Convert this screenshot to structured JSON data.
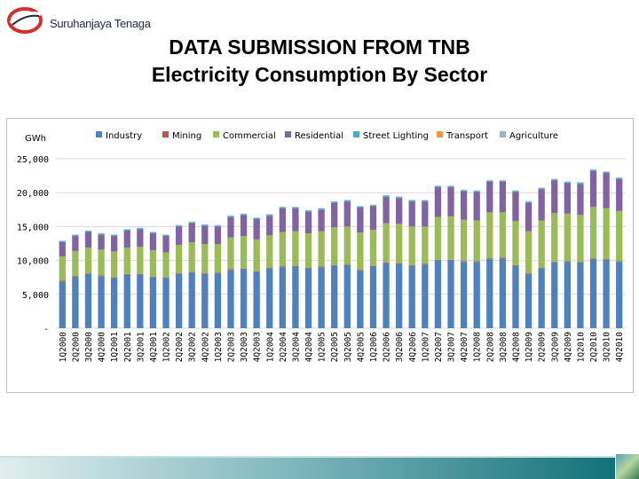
{
  "header": {
    "logo_text": "Suruhanjaya Tenaga",
    "title_line1": "DATA SUBMISSION FROM TNB",
    "title_line2": "Electricity Consumption By Sector"
  },
  "colors": {
    "Industry": "#4f81bd",
    "Mining": "#c0504d",
    "Commercial": "#9bbb59",
    "Residential": "#8064a2",
    "Street Lighting": "#4bacc6",
    "Transport": "#f79646",
    "Agriculture": "#95b3d7"
  },
  "chart_data": {
    "type": "bar",
    "stacked": true,
    "unit_label": "GWh",
    "ylim": [
      0,
      25000
    ],
    "yticks": [
      "-",
      "5,000",
      "10,000",
      "15,000",
      "20,000",
      "25,000"
    ],
    "legend_position": "top",
    "categories": [
      "1Q2000",
      "2Q2000",
      "3Q2000",
      "4Q2000",
      "1Q2001",
      "2Q2001",
      "3Q2001",
      "4Q2001",
      "1Q2002",
      "2Q2002",
      "3Q2002",
      "4Q2002",
      "1Q2003",
      "2Q2003",
      "3Q2003",
      "4Q2003",
      "1Q2004",
      "2Q2004",
      "3Q2004",
      "4Q2004",
      "1Q2005",
      "2Q2005",
      "3Q2005",
      "4Q2005",
      "1Q2006",
      "2Q2006",
      "3Q2006",
      "4Q2006",
      "1Q2007",
      "2Q2007",
      "3Q2007",
      "4Q2007",
      "1Q2008",
      "2Q2008",
      "3Q2008",
      "4Q2008",
      "1Q2009",
      "2Q2009",
      "3Q2009",
      "4Q2009",
      "1Q2010",
      "2Q2010",
      "3Q2010",
      "4Q2010"
    ],
    "series": [
      {
        "name": "Industry",
        "values": [
          6900,
          7600,
          8000,
          7700,
          7400,
          7900,
          7900,
          7500,
          7400,
          8000,
          8200,
          8000,
          8100,
          8600,
          8700,
          8300,
          8800,
          9000,
          9100,
          8800,
          9000,
          9200,
          9300,
          8500,
          9100,
          9600,
          9500,
          9200,
          9400,
          10000,
          10000,
          9800,
          9800,
          10200,
          10300,
          9200,
          8000,
          8800,
          9700,
          9800,
          9700,
          10200,
          10100,
          9800
        ]
      },
      {
        "name": "Mining",
        "values": [
          100,
          100,
          100,
          100,
          100,
          100,
          100,
          100,
          100,
          100,
          100,
          100,
          100,
          100,
          100,
          100,
          100,
          100,
          100,
          100,
          100,
          100,
          100,
          100,
          100,
          100,
          100,
          100,
          100,
          100,
          100,
          100,
          100,
          100,
          100,
          100,
          100,
          100,
          100,
          100,
          100,
          100,
          100,
          100
        ]
      },
      {
        "name": "Commercial",
        "values": [
          3600,
          3700,
          3800,
          3800,
          3800,
          3900,
          4000,
          3900,
          3700,
          4200,
          4400,
          4300,
          4200,
          4700,
          4800,
          4700,
          4800,
          5100,
          5100,
          5100,
          5200,
          5600,
          5600,
          5500,
          5300,
          5800,
          5800,
          5700,
          5500,
          6300,
          6400,
          6100,
          6000,
          6800,
          6700,
          6500,
          6200,
          7000,
          7200,
          7000,
          6900,
          7600,
          7500,
          7400
        ]
      },
      {
        "name": "Residential",
        "values": [
          2100,
          2200,
          2300,
          2200,
          2300,
          2500,
          2600,
          2500,
          2400,
          2700,
          2800,
          2700,
          2600,
          3000,
          3100,
          3000,
          2900,
          3500,
          3400,
          3200,
          3200,
          3600,
          3700,
          3700,
          3500,
          3900,
          3800,
          3700,
          3700,
          4400,
          4300,
          4200,
          4200,
          4500,
          4500,
          4300,
          4200,
          4600,
          4800,
          4500,
          4600,
          5300,
          5200,
          4700
        ]
      },
      {
        "name": "Street Lighting",
        "values": [
          150,
          150,
          150,
          150,
          150,
          150,
          150,
          150,
          150,
          150,
          150,
          150,
          150,
          150,
          150,
          150,
          150,
          150,
          150,
          150,
          160,
          160,
          160,
          160,
          160,
          160,
          160,
          160,
          160,
          160,
          160,
          160,
          160,
          170,
          170,
          170,
          170,
          170,
          170,
          170,
          170,
          170,
          170,
          170
        ]
      },
      {
        "name": "Transport",
        "values": [
          10,
          10,
          10,
          10,
          10,
          10,
          10,
          10,
          10,
          10,
          10,
          10,
          10,
          10,
          10,
          10,
          10,
          10,
          10,
          10,
          10,
          10,
          10,
          10,
          10,
          10,
          10,
          10,
          10,
          10,
          10,
          10,
          10,
          10,
          10,
          10,
          10,
          10,
          10,
          10,
          10,
          10,
          10,
          10
        ]
      },
      {
        "name": "Agriculture",
        "values": [
          60,
          60,
          60,
          60,
          60,
          60,
          60,
          60,
          60,
          60,
          60,
          60,
          60,
          60,
          60,
          60,
          60,
          60,
          60,
          60,
          60,
          60,
          60,
          60,
          60,
          60,
          60,
          60,
          60,
          60,
          60,
          60,
          60,
          60,
          60,
          60,
          60,
          60,
          60,
          60,
          60,
          60,
          60,
          60
        ]
      }
    ]
  }
}
